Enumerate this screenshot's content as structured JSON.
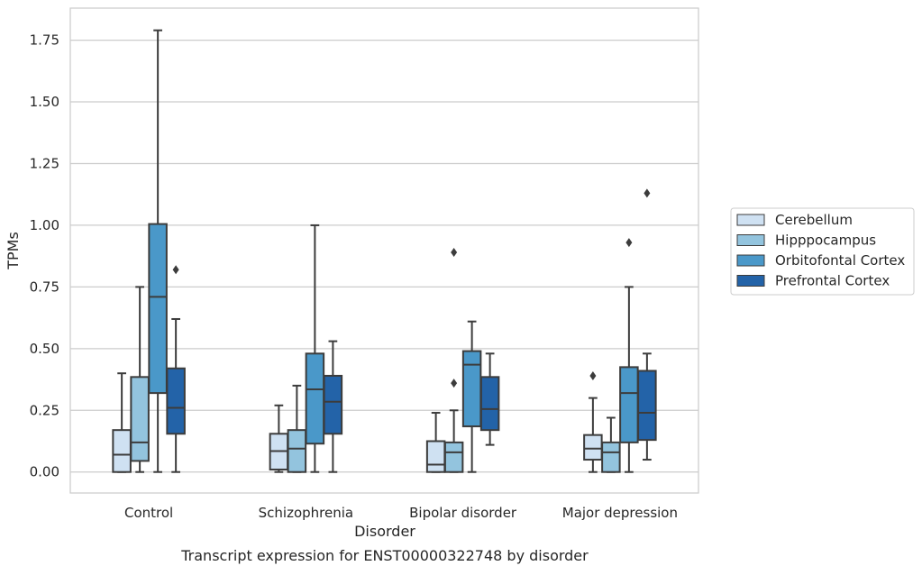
{
  "chart_data": {
    "type": "box",
    "xlabel": "Disorder",
    "ylabel": "TPMs",
    "caption": "Transcript expression for ENST00000322748 by disorder",
    "ylim": [
      -0.085,
      1.88
    ],
    "yticks": [
      "0.00",
      "0.25",
      "0.50",
      "0.75",
      "1.00",
      "1.25",
      "1.50",
      "1.75"
    ],
    "ytick_values": [
      0,
      0.25,
      0.5,
      0.75,
      1.0,
      1.25,
      1.5,
      1.75
    ],
    "grid": "horizontal",
    "legend_position": "right",
    "categories": [
      "Control",
      "Schizophrenia",
      "Bipolar disorder",
      "Major depression"
    ],
    "series": [
      {
        "name": "Cerebellum",
        "color": "#cfe1f2",
        "boxes": [
          {
            "whislo": 0.0,
            "q1": 0.0,
            "med": 0.07,
            "q3": 0.17,
            "whishi": 0.4,
            "fliers": []
          },
          {
            "whislo": 0.0,
            "q1": 0.01,
            "med": 0.085,
            "q3": 0.155,
            "whishi": 0.27,
            "fliers": []
          },
          {
            "whislo": 0.0,
            "q1": 0.0,
            "med": 0.03,
            "q3": 0.125,
            "whishi": 0.24,
            "fliers": []
          },
          {
            "whislo": 0.0,
            "q1": 0.05,
            "med": 0.095,
            "q3": 0.15,
            "whishi": 0.3,
            "fliers": [
              0.39
            ]
          }
        ]
      },
      {
        "name": "Hipppocampus",
        "color": "#93c4de",
        "boxes": [
          {
            "whislo": 0.0,
            "q1": 0.045,
            "med": 0.12,
            "q3": 0.385,
            "whishi": 0.75,
            "fliers": []
          },
          {
            "whislo": 0.0,
            "q1": 0.0,
            "med": 0.095,
            "q3": 0.17,
            "whishi": 0.35,
            "fliers": []
          },
          {
            "whislo": 0.0,
            "q1": 0.0,
            "med": 0.08,
            "q3": 0.12,
            "whishi": 0.25,
            "fliers": [
              0.36,
              0.89
            ]
          },
          {
            "whislo": 0.0,
            "q1": 0.0,
            "med": 0.08,
            "q3": 0.12,
            "whishi": 0.22,
            "fliers": []
          }
        ]
      },
      {
        "name": "Orbitofontal Cortex",
        "color": "#4a98c9",
        "boxes": [
          {
            "whislo": 0.0,
            "q1": 0.32,
            "med": 0.71,
            "q3": 1.005,
            "whishi": 1.79,
            "fliers": []
          },
          {
            "whislo": 0.0,
            "q1": 0.115,
            "med": 0.335,
            "q3": 0.48,
            "whishi": 1.0,
            "fliers": []
          },
          {
            "whislo": 0.0,
            "q1": 0.185,
            "med": 0.435,
            "q3": 0.49,
            "whishi": 0.61,
            "fliers": []
          },
          {
            "whislo": 0.0,
            "q1": 0.12,
            "med": 0.32,
            "q3": 0.425,
            "whishi": 0.75,
            "fliers": [
              0.93
            ]
          }
        ]
      },
      {
        "name": "Prefrontal Cortex",
        "color": "#2363a8",
        "boxes": [
          {
            "whislo": 0.0,
            "q1": 0.155,
            "med": 0.26,
            "q3": 0.42,
            "whishi": 0.62,
            "fliers": [
              0.82
            ]
          },
          {
            "whislo": 0.0,
            "q1": 0.155,
            "med": 0.285,
            "q3": 0.39,
            "whishi": 0.53,
            "fliers": []
          },
          {
            "whislo": 0.11,
            "q1": 0.17,
            "med": 0.255,
            "q3": 0.385,
            "whishi": 0.48,
            "fliers": []
          },
          {
            "whislo": 0.05,
            "q1": 0.13,
            "med": 0.24,
            "q3": 0.41,
            "whishi": 0.48,
            "fliers": [
              1.13
            ]
          }
        ]
      }
    ]
  }
}
